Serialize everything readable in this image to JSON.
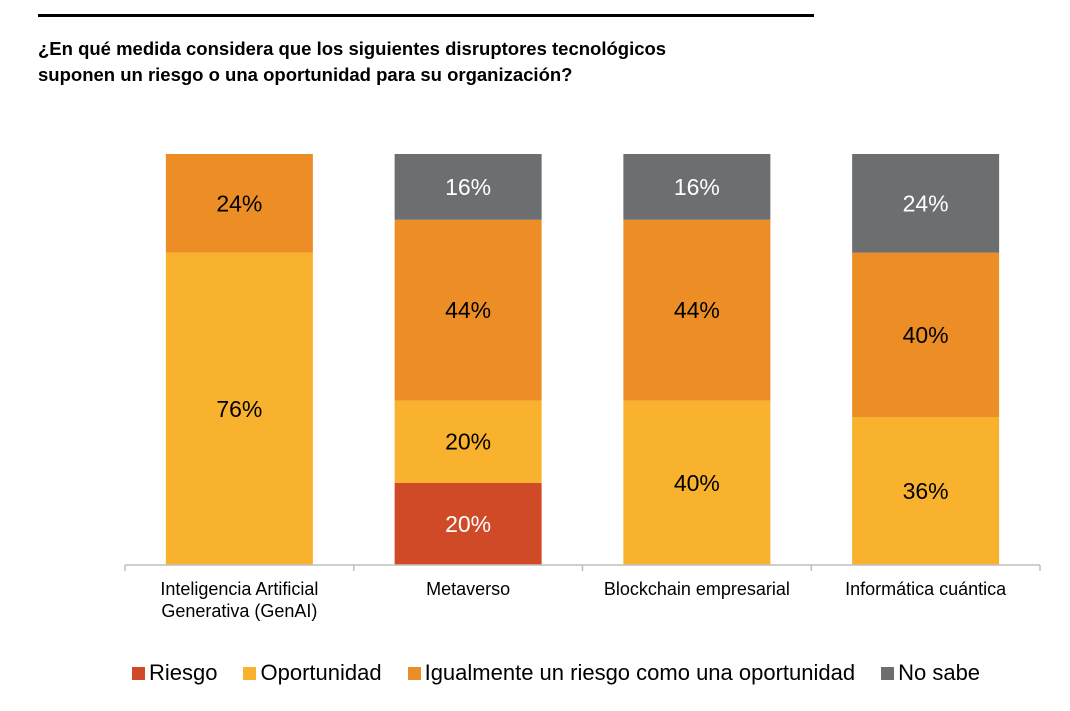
{
  "question": {
    "line1": "¿En qué medida considera que los siguientes disruptores tecnológicos",
    "line2": "suponen un riesgo o una oportunidad para su organización?"
  },
  "legend": {
    "items": [
      {
        "label": "Riesgo",
        "color": "#D04A27"
      },
      {
        "label": "Oportunidad",
        "color": "#F9B22E"
      },
      {
        "label": "Igualmente un riesgo como una oportunidad",
        "color": "#EC8E25"
      },
      {
        "label": "No sabe",
        "color": "#6D6E70"
      }
    ]
  },
  "chart_data": {
    "type": "bar",
    "stacked": true,
    "orientation": "vertical",
    "ylim": [
      0,
      100
    ],
    "categories": [
      [
        "Inteligencia Artificial",
        "Generativa (GenAI)"
      ],
      [
        "Metaverso"
      ],
      [
        "Blockchain empresarial"
      ],
      [
        "Informática cuántica"
      ]
    ],
    "series": [
      {
        "name": "Riesgo",
        "color": "#D04A27",
        "label_color": "#ffffff",
        "values": [
          0,
          20,
          0,
          0
        ]
      },
      {
        "name": "Oportunidad",
        "color": "#F9B22E",
        "label_color": "#000000",
        "values": [
          76,
          20,
          40,
          36
        ]
      },
      {
        "name": "Igualmente un riesgo como una oportunidad",
        "color": "#EC8E25",
        "label_color": "#000000",
        "values": [
          24,
          44,
          44,
          40
        ]
      },
      {
        "name": "No sabe",
        "color": "#6D6E70",
        "label_color": "#ffffff",
        "values": [
          0,
          16,
          16,
          24
        ]
      }
    ],
    "label_suffix": "%",
    "legend_position": "bottom"
  }
}
